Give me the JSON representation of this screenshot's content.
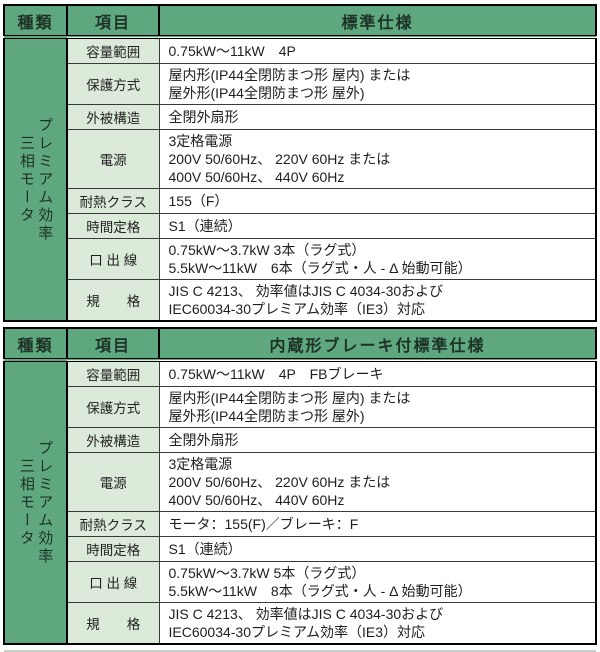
{
  "colors": {
    "header_green": "#5fa77e",
    "item_pale_green": "#dcead9",
    "border_black": "#000000"
  },
  "tables": [
    {
      "header": {
        "type": "種類",
        "item": "項目",
        "spec": "標準仕様"
      },
      "type_vertical": [
        "プレミアム効率",
        "三相モータ"
      ],
      "rows": [
        {
          "item": "容量範囲",
          "lines": [
            "0.75kW〜11kW　4P"
          ]
        },
        {
          "item": "保護方式",
          "lines": [
            "屋内形(IP44全閉防まつ形 屋内) または",
            "屋外形(IP44全閉防まつ形 屋外)"
          ]
        },
        {
          "item": "外被構造",
          "lines": [
            "全閉外扇形"
          ]
        },
        {
          "item": "電源",
          "lines": [
            "3定格電源",
            "200V 50/60Hz、 220V 60Hz または",
            "400V 50/60Hz、 440V 60Hz"
          ]
        },
        {
          "item": "耐熱クラス",
          "lines": [
            "155（F）"
          ]
        },
        {
          "item": "時間定格",
          "lines": [
            "S1（連続）"
          ]
        },
        {
          "item": "口 出 線",
          "lines": [
            "0.75kW〜3.7kW 3本（ラグ式）",
            "5.5kW〜11kW　6本（ラグ式・人 - Δ 始動可能）"
          ]
        },
        {
          "item": "規　　格",
          "lines": [
            "JIS C 4213、 効率値はJIS C 4034-30および",
            "IEC60034-30プレミアム効率（IE3）対応"
          ]
        }
      ]
    },
    {
      "header": {
        "type": "種類",
        "item": "項目",
        "spec": "内蔵形ブレーキ付標準仕様"
      },
      "type_vertical": [
        "プレミアム効率",
        "三相モータ"
      ],
      "rows": [
        {
          "item": "容量範囲",
          "lines": [
            "0.75kW〜11kW　4P　FBブレーキ"
          ]
        },
        {
          "item": "保護方式",
          "lines": [
            "屋内形(IP44全閉防まつ形 屋内) または",
            "屋外形(IP44全閉防まつ形 屋外)"
          ]
        },
        {
          "item": "外被構造",
          "lines": [
            "全閉外扇形"
          ]
        },
        {
          "item": "電源",
          "lines": [
            "3定格電源",
            "200V 50/60Hz、 220V 60Hz または",
            "400V 50/60Hz、 440V 60Hz"
          ]
        },
        {
          "item": "耐熱クラス",
          "lines": [
            "モータ：155(F)／ブレーキ：F"
          ]
        },
        {
          "item": "時間定格",
          "lines": [
            "S1（連続）"
          ]
        },
        {
          "item": "口 出 線",
          "lines": [
            "0.75kW〜3.7kW 5本（ラグ式）",
            "5.5kW〜11kW　8本（ラグ式・人 - Δ 始動可能）"
          ]
        },
        {
          "item": "規　　格",
          "lines": [
            "JIS C 4213、 効率値はJIS C 4034-30および",
            "IEC60034-30プレミアム効率（IE3）対応"
          ]
        }
      ]
    }
  ]
}
